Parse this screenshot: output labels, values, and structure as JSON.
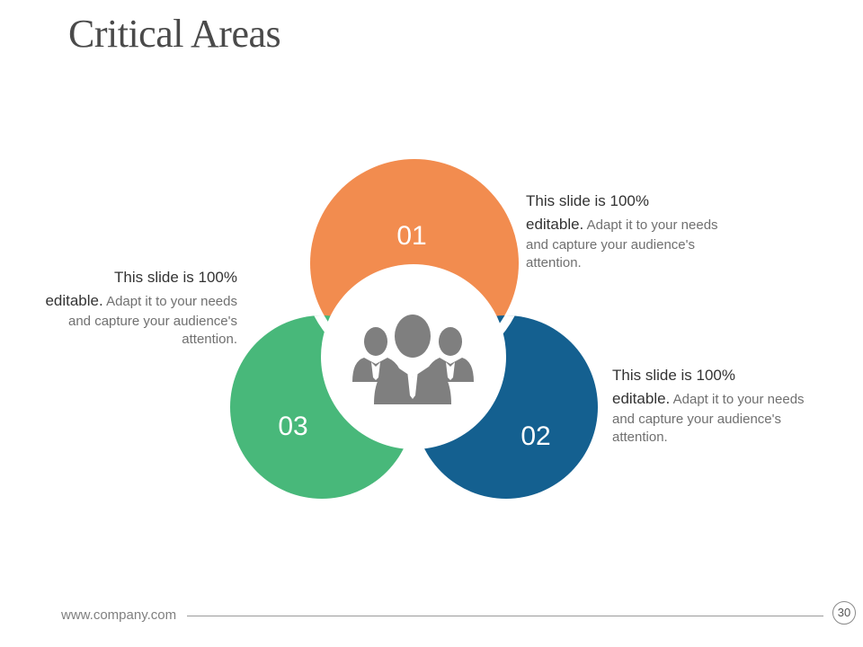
{
  "title": "Critical Areas",
  "colors": {
    "orange": "#f28c4f",
    "blue": "#146090",
    "green": "#48b87a",
    "center": "#ffffff",
    "icon": "#7f7f7f"
  },
  "circles": [
    {
      "label": "01",
      "color_key": "orange"
    },
    {
      "label": "02",
      "color_key": "blue"
    },
    {
      "label": "03",
      "color_key": "green"
    }
  ],
  "center_icon": "people-group-icon",
  "descriptions": [
    {
      "head": "This slide is 100% editable.",
      "head_line1": "This slide is 100%",
      "head_line2": "editable.",
      "body": "Adapt it to your needs and capture your audience's attention."
    },
    {
      "head_line1": "This slide is 100%",
      "head_line2": "editable.",
      "body": "Adapt it to your needs and capture your audience's attention."
    },
    {
      "head_line1": "This slide is 100%",
      "head_line2": "editable.",
      "body": "Adapt it to your needs and capture your audience's attention."
    }
  ],
  "footer": {
    "url": "www.company.com",
    "page": "30"
  }
}
